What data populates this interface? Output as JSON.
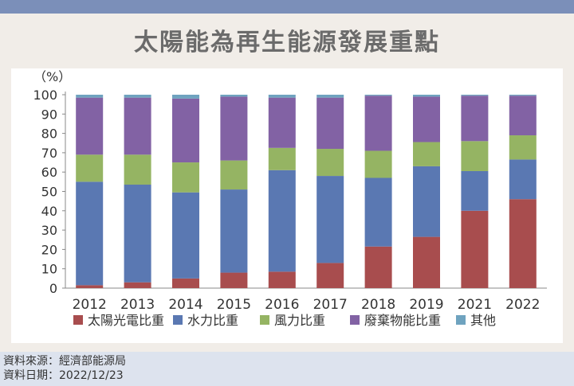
{
  "title": "太陽能為再生能源發展重點",
  "source_line1": "資料來源：經濟部能源局",
  "source_line2": "資料日期：2022/12/23",
  "colors": {
    "top_band": "#7b8fb9",
    "solar": "#a84d4e",
    "hydro": "#5a78b2",
    "wind": "#95b463",
    "waste": "#8262a4",
    "other": "#6fa3bf"
  },
  "chart_data": {
    "type": "bar",
    "stacked": true,
    "title": "太陽能為再生能源發展重點",
    "xlabel": "",
    "ylabel": "（%）",
    "ylim": [
      0,
      100
    ],
    "yticks": [
      0,
      10,
      20,
      30,
      40,
      50,
      60,
      70,
      80,
      90,
      100
    ],
    "categories": [
      "2012",
      "2013",
      "2014",
      "2015",
      "2016",
      "2017",
      "2018",
      "2019",
      "2021",
      "2022"
    ],
    "series": [
      {
        "name": "太陽光電比重",
        "color": "#a84d4e",
        "values": [
          1.5,
          3,
          5,
          8,
          8.5,
          13,
          21.5,
          26.5,
          40,
          46
        ]
      },
      {
        "name": "水力比重",
        "color": "#5a78b2",
        "values": [
          53.5,
          50.5,
          44.5,
          43,
          52.5,
          45,
          35.5,
          36.5,
          20.5,
          20.5
        ]
      },
      {
        "name": "風力比重",
        "color": "#95b463",
        "values": [
          14,
          15.5,
          15.5,
          15,
          11.5,
          14,
          14,
          12.5,
          15.5,
          12.5
        ]
      },
      {
        "name": "廢棄物能比重",
        "color": "#8262a4",
        "values": [
          29.5,
          29.5,
          33,
          33,
          26,
          26.5,
          28.5,
          23.5,
          23.5,
          20.5
        ]
      },
      {
        "name": "其他",
        "color": "#6fa3bf",
        "values": [
          1.5,
          1.5,
          2,
          1,
          1.5,
          1.5,
          0.5,
          1,
          0.5,
          0.5
        ]
      }
    ],
    "legend_position": "bottom",
    "grid": false
  }
}
